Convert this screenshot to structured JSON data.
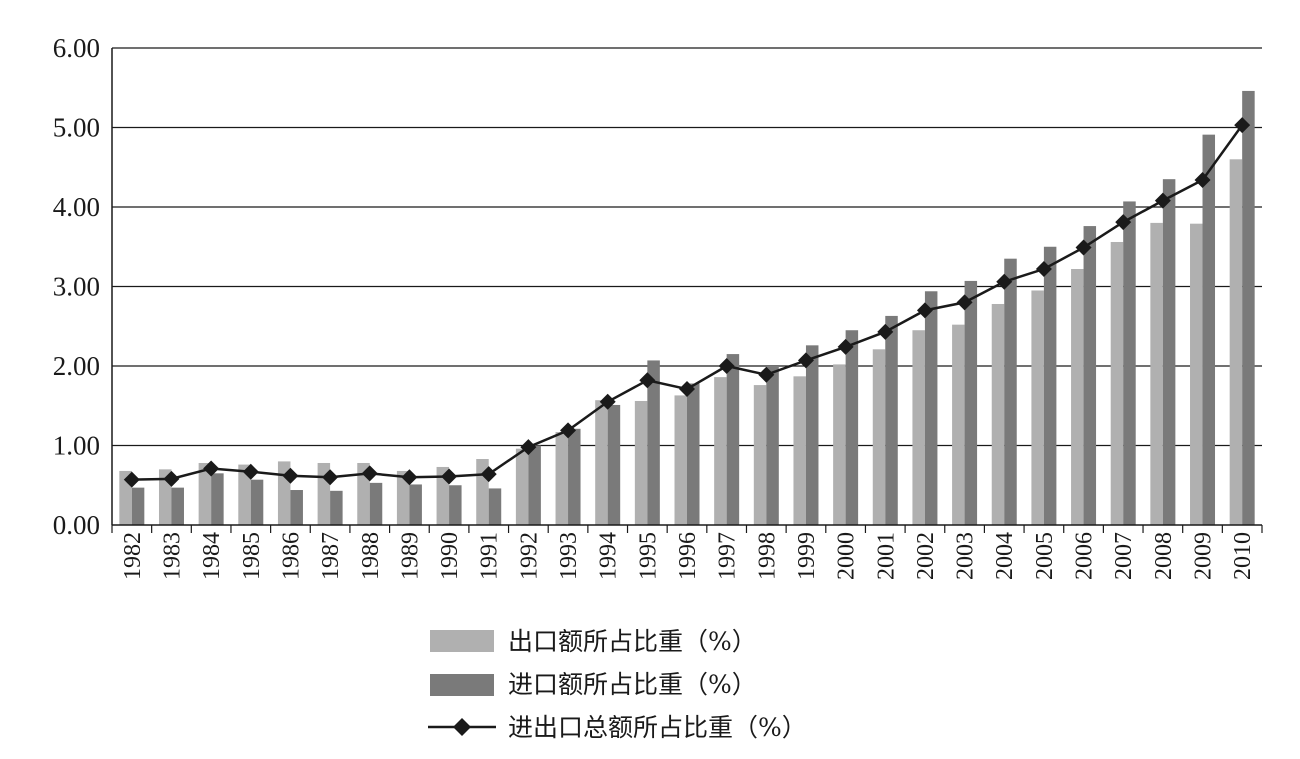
{
  "chart_data": {
    "type": "bar",
    "title": "",
    "xlabel": "",
    "ylabel": "",
    "ylim": [
      0,
      6
    ],
    "yticks": [
      "0.00",
      "1.00",
      "2.00",
      "3.00",
      "4.00",
      "5.00",
      "6.00"
    ],
    "grid": true,
    "legend_position": "bottom",
    "categories": [
      "1982",
      "1983",
      "1984",
      "1985",
      "1986",
      "1987",
      "1988",
      "1989",
      "1990",
      "1991",
      "1992",
      "1993",
      "1994",
      "1995",
      "1996",
      "1997",
      "1998",
      "1999",
      "2000",
      "2001",
      "2002",
      "2003",
      "2004",
      "2005",
      "2006",
      "2007",
      "2008",
      "2009",
      "2010"
    ],
    "series": [
      {
        "name": "出口额所占比重（%）",
        "type": "bar",
        "color": "#b0b0b0",
        "values": [
          0.68,
          0.7,
          0.78,
          0.76,
          0.8,
          0.78,
          0.78,
          0.68,
          0.73,
          0.83,
          0.96,
          1.17,
          1.57,
          1.56,
          1.63,
          1.86,
          1.76,
          1.87,
          2.02,
          2.21,
          2.45,
          2.52,
          2.78,
          2.95,
          3.22,
          3.56,
          3.8,
          3.79,
          4.6
        ]
      },
      {
        "name": "进口额所占比重（%）",
        "type": "bar",
        "color": "#7a7a7a",
        "values": [
          0.47,
          0.47,
          0.65,
          0.57,
          0.44,
          0.43,
          0.53,
          0.51,
          0.5,
          0.46,
          1.0,
          1.21,
          1.51,
          2.07,
          1.78,
          2.15,
          2.0,
          2.26,
          2.45,
          2.63,
          2.94,
          3.07,
          3.35,
          3.5,
          3.76,
          4.07,
          4.35,
          4.91,
          5.46
        ]
      },
      {
        "name": "进出口总额所占比重（%）",
        "type": "line",
        "color": "#1a1a1a",
        "marker": "diamond",
        "values": [
          0.57,
          0.58,
          0.71,
          0.67,
          0.62,
          0.6,
          0.65,
          0.6,
          0.61,
          0.64,
          0.98,
          1.19,
          1.55,
          1.82,
          1.71,
          2.0,
          1.89,
          2.07,
          2.24,
          2.43,
          2.7,
          2.8,
          3.06,
          3.22,
          3.49,
          3.81,
          4.08,
          4.34,
          5.03
        ]
      }
    ]
  }
}
